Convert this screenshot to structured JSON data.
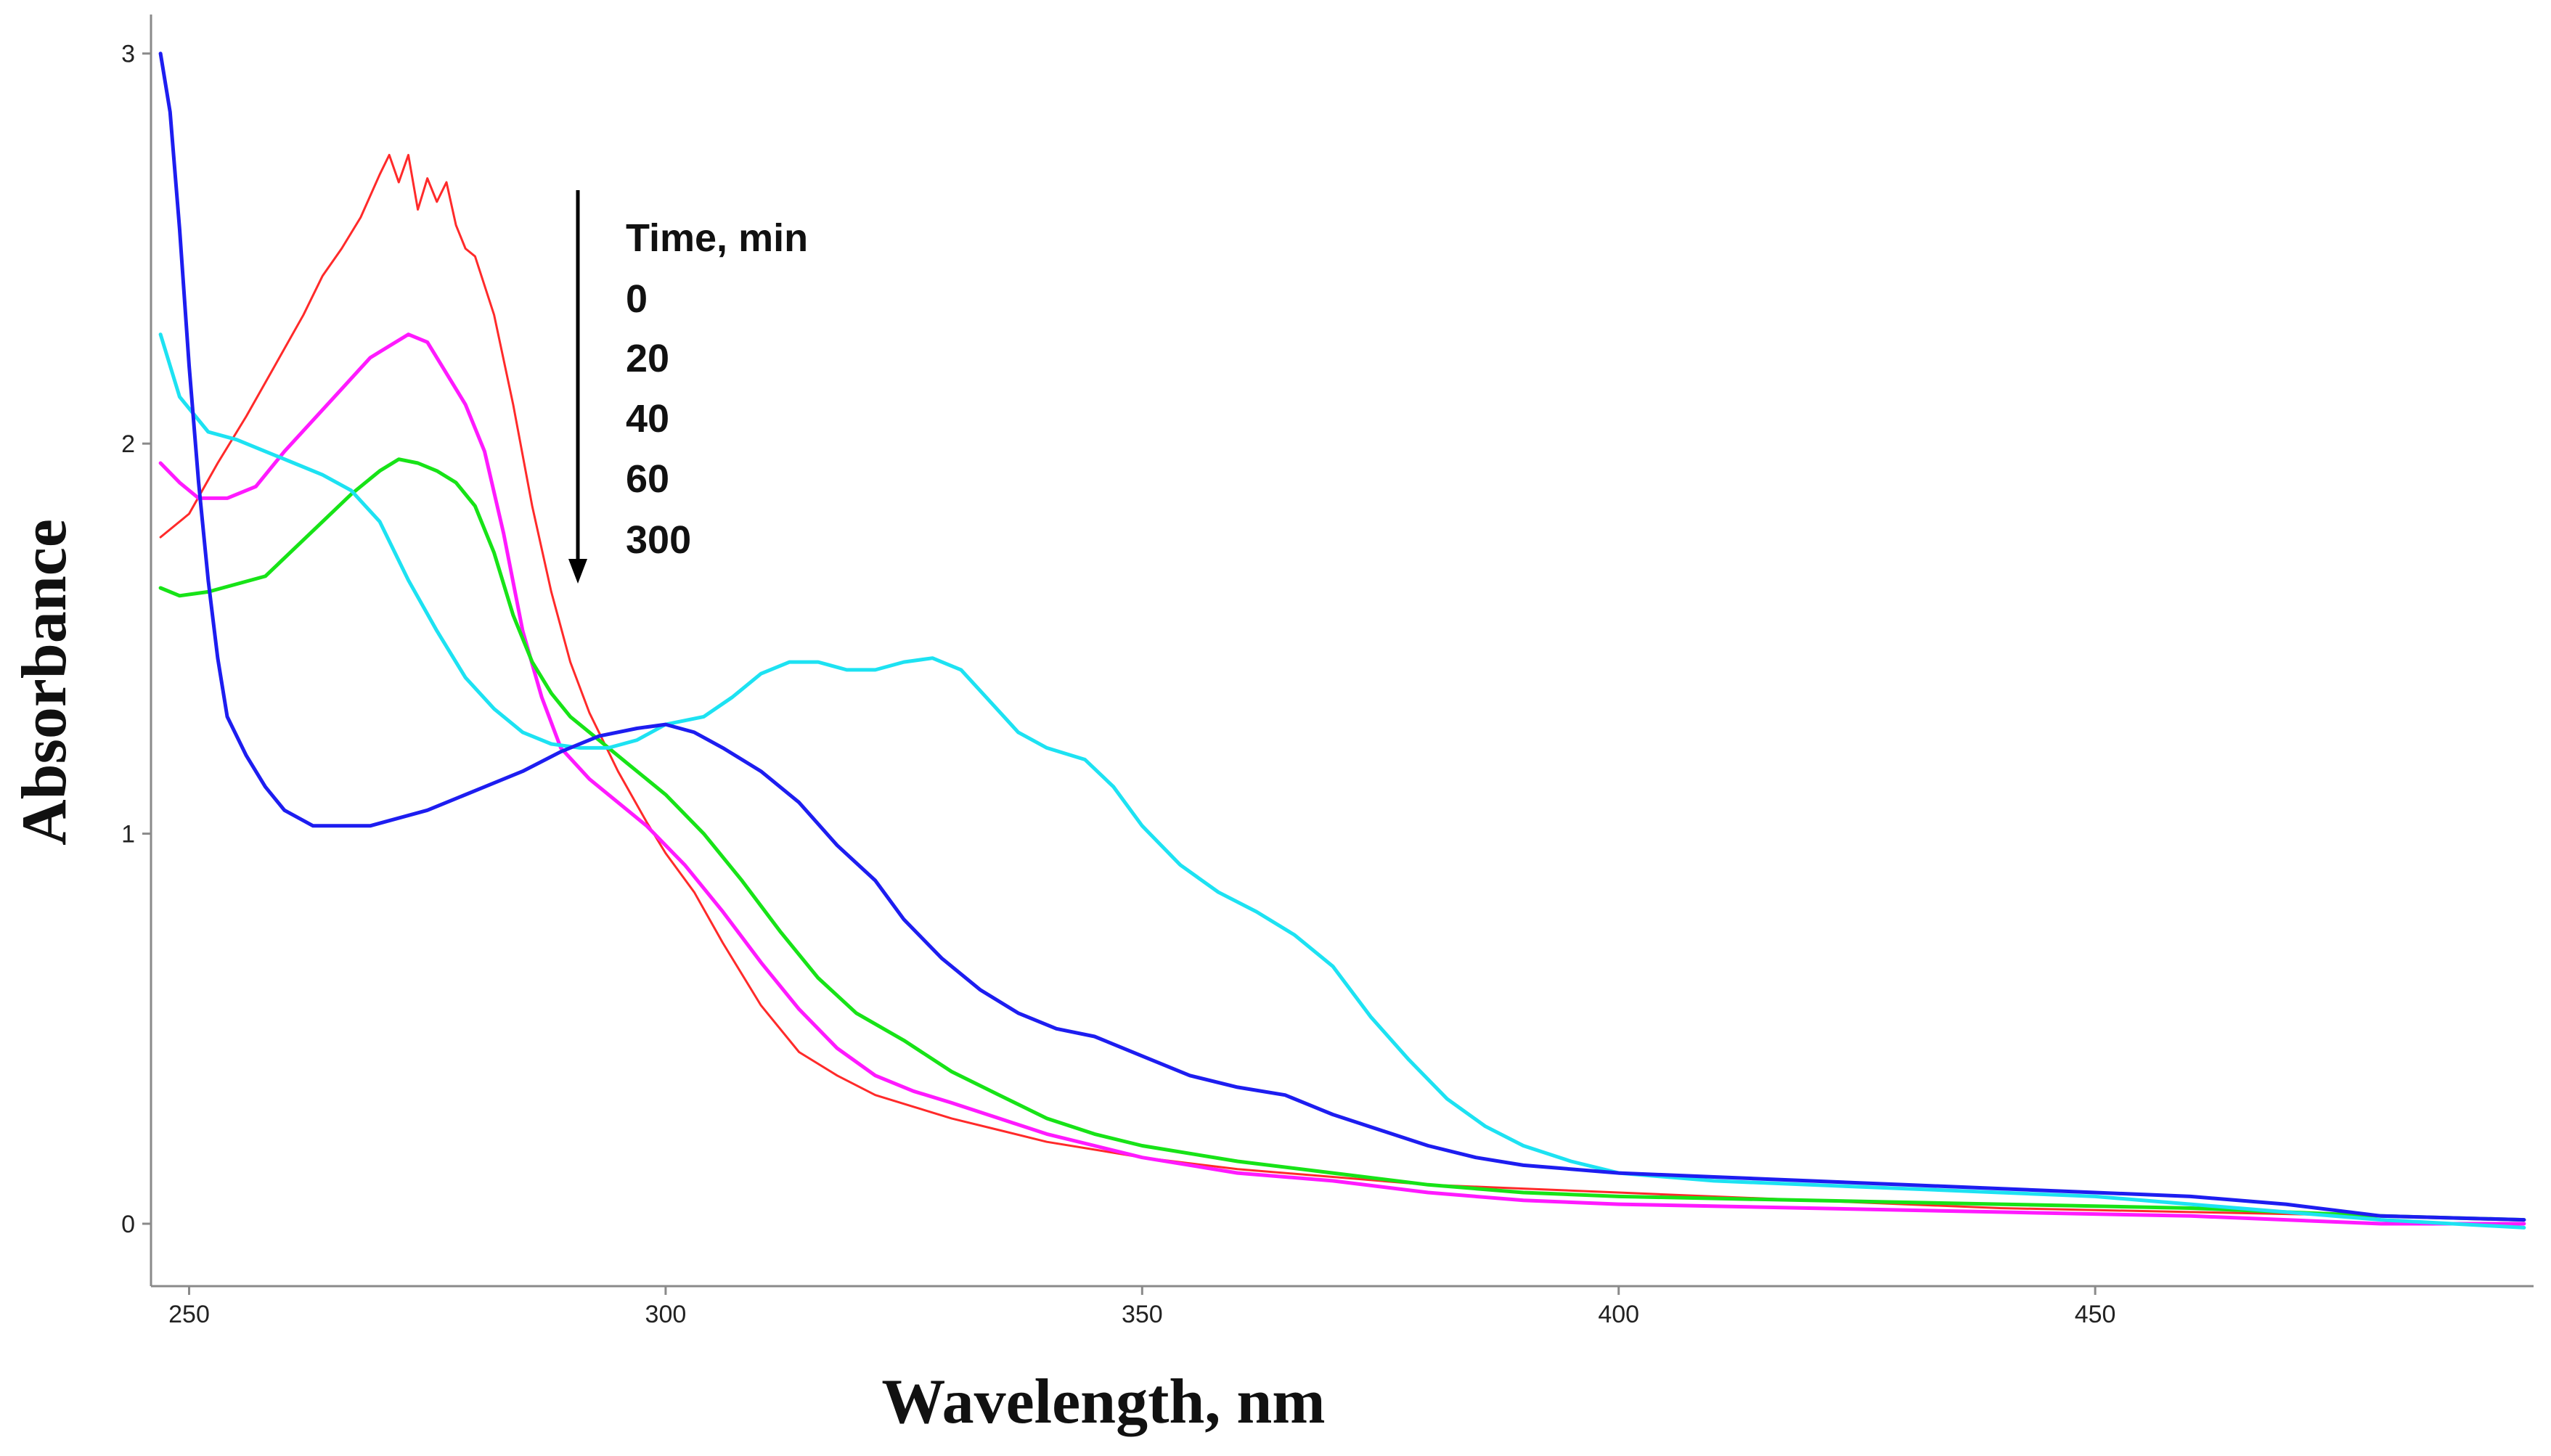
{
  "chart_data": {
    "type": "line",
    "title": "",
    "xlabel": "Wavelength, nm",
    "ylabel": "Absorbance",
    "xlim": [
      246,
      496
    ],
    "ylim": [
      -0.16,
      3.1
    ],
    "xticks": [
      250,
      300,
      350,
      400,
      450
    ],
    "yticks": [
      0,
      1,
      2,
      3
    ],
    "grid": false,
    "legend": {
      "title": "Time, min",
      "entries": [
        "0",
        "20",
        "40",
        "60",
        "300"
      ],
      "placement": "top-center",
      "arrow": "downward"
    },
    "series": [
      {
        "name": "0",
        "color": "#ff2a2a",
        "stroke": 3,
        "points": [
          [
            247,
            1.76
          ],
          [
            250,
            1.82
          ],
          [
            253,
            1.95
          ],
          [
            256,
            2.07
          ],
          [
            259,
            2.2
          ],
          [
            262,
            2.33
          ],
          [
            264,
            2.43
          ],
          [
            266,
            2.5
          ],
          [
            268,
            2.58
          ],
          [
            270,
            2.69
          ],
          [
            271,
            2.74
          ],
          [
            272,
            2.67
          ],
          [
            273,
            2.74
          ],
          [
            274,
            2.6
          ],
          [
            275,
            2.68
          ],
          [
            276,
            2.62
          ],
          [
            277,
            2.67
          ],
          [
            278,
            2.56
          ],
          [
            279,
            2.5
          ],
          [
            280,
            2.48
          ],
          [
            282,
            2.33
          ],
          [
            284,
            2.1
          ],
          [
            286,
            1.84
          ],
          [
            288,
            1.62
          ],
          [
            290,
            1.44
          ],
          [
            292,
            1.31
          ],
          [
            295,
            1.16
          ],
          [
            298,
            1.03
          ],
          [
            300,
            0.95
          ],
          [
            303,
            0.85
          ],
          [
            306,
            0.72
          ],
          [
            310,
            0.56
          ],
          [
            314,
            0.44
          ],
          [
            318,
            0.38
          ],
          [
            322,
            0.33
          ],
          [
            326,
            0.3
          ],
          [
            330,
            0.27
          ],
          [
            335,
            0.24
          ],
          [
            340,
            0.21
          ],
          [
            345,
            0.19
          ],
          [
            350,
            0.17
          ],
          [
            360,
            0.14
          ],
          [
            370,
            0.12
          ],
          [
            380,
            0.1
          ],
          [
            390,
            0.09
          ],
          [
            400,
            0.08
          ],
          [
            420,
            0.06
          ],
          [
            440,
            0.04
          ],
          [
            460,
            0.03
          ],
          [
            480,
            0.02
          ],
          [
            495,
            0.01
          ]
        ]
      },
      {
        "name": "20",
        "color": "#ff1aff",
        "stroke": 5,
        "points": [
          [
            247,
            1.95
          ],
          [
            249,
            1.9
          ],
          [
            251,
            1.86
          ],
          [
            254,
            1.86
          ],
          [
            257,
            1.89
          ],
          [
            260,
            1.98
          ],
          [
            263,
            2.06
          ],
          [
            266,
            2.14
          ],
          [
            269,
            2.22
          ],
          [
            271,
            2.25
          ],
          [
            273,
            2.28
          ],
          [
            275,
            2.26
          ],
          [
            277,
            2.18
          ],
          [
            279,
            2.1
          ],
          [
            281,
            1.98
          ],
          [
            283,
            1.77
          ],
          [
            285,
            1.52
          ],
          [
            287,
            1.35
          ],
          [
            289,
            1.22
          ],
          [
            292,
            1.14
          ],
          [
            295,
            1.08
          ],
          [
            298,
            1.02
          ],
          [
            302,
            0.92
          ],
          [
            306,
            0.8
          ],
          [
            310,
            0.67
          ],
          [
            314,
            0.55
          ],
          [
            318,
            0.45
          ],
          [
            322,
            0.38
          ],
          [
            326,
            0.34
          ],
          [
            330,
            0.31
          ],
          [
            335,
            0.27
          ],
          [
            340,
            0.23
          ],
          [
            345,
            0.2
          ],
          [
            350,
            0.17
          ],
          [
            360,
            0.13
          ],
          [
            370,
            0.11
          ],
          [
            380,
            0.08
          ],
          [
            390,
            0.06
          ],
          [
            400,
            0.05
          ],
          [
            420,
            0.04
          ],
          [
            440,
            0.03
          ],
          [
            460,
            0.02
          ],
          [
            480,
            0.0
          ],
          [
            495,
            0.0
          ]
        ]
      },
      {
        "name": "40",
        "color": "#17e317",
        "stroke": 5,
        "points": [
          [
            247,
            1.63
          ],
          [
            249,
            1.61
          ],
          [
            252,
            1.62
          ],
          [
            255,
            1.64
          ],
          [
            258,
            1.66
          ],
          [
            261,
            1.73
          ],
          [
            264,
            1.8
          ],
          [
            267,
            1.87
          ],
          [
            270,
            1.93
          ],
          [
            272,
            1.96
          ],
          [
            274,
            1.95
          ],
          [
            276,
            1.93
          ],
          [
            278,
            1.9
          ],
          [
            280,
            1.84
          ],
          [
            282,
            1.72
          ],
          [
            284,
            1.56
          ],
          [
            286,
            1.44
          ],
          [
            288,
            1.36
          ],
          [
            290,
            1.3
          ],
          [
            293,
            1.24
          ],
          [
            296,
            1.18
          ],
          [
            300,
            1.1
          ],
          [
            304,
            1.0
          ],
          [
            308,
            0.88
          ],
          [
            312,
            0.75
          ],
          [
            316,
            0.63
          ],
          [
            320,
            0.54
          ],
          [
            325,
            0.47
          ],
          [
            330,
            0.39
          ],
          [
            335,
            0.33
          ],
          [
            340,
            0.27
          ],
          [
            345,
            0.23
          ],
          [
            350,
            0.2
          ],
          [
            360,
            0.16
          ],
          [
            370,
            0.13
          ],
          [
            380,
            0.1
          ],
          [
            390,
            0.08
          ],
          [
            400,
            0.07
          ],
          [
            420,
            0.06
          ],
          [
            440,
            0.05
          ],
          [
            460,
            0.04
          ],
          [
            480,
            0.02
          ],
          [
            495,
            0.01
          ]
        ]
      },
      {
        "name": "60",
        "color": "#1de2f2",
        "stroke": 5,
        "points": [
          [
            247,
            2.28
          ],
          [
            249,
            2.12
          ],
          [
            252,
            2.03
          ],
          [
            255,
            2.01
          ],
          [
            258,
            1.98
          ],
          [
            261,
            1.95
          ],
          [
            264,
            1.92
          ],
          [
            267,
            1.88
          ],
          [
            270,
            1.8
          ],
          [
            273,
            1.65
          ],
          [
            276,
            1.52
          ],
          [
            279,
            1.4
          ],
          [
            282,
            1.32
          ],
          [
            285,
            1.26
          ],
          [
            288,
            1.23
          ],
          [
            291,
            1.22
          ],
          [
            294,
            1.22
          ],
          [
            297,
            1.24
          ],
          [
            300,
            1.28
          ],
          [
            304,
            1.3
          ],
          [
            307,
            1.35
          ],
          [
            310,
            1.41
          ],
          [
            313,
            1.44
          ],
          [
            316,
            1.44
          ],
          [
            319,
            1.42
          ],
          [
            322,
            1.42
          ],
          [
            325,
            1.44
          ],
          [
            328,
            1.45
          ],
          [
            331,
            1.42
          ],
          [
            334,
            1.34
          ],
          [
            337,
            1.26
          ],
          [
            340,
            1.22
          ],
          [
            344,
            1.19
          ],
          [
            347,
            1.12
          ],
          [
            350,
            1.02
          ],
          [
            354,
            0.92
          ],
          [
            358,
            0.85
          ],
          [
            362,
            0.8
          ],
          [
            366,
            0.74
          ],
          [
            370,
            0.66
          ],
          [
            374,
            0.53
          ],
          [
            378,
            0.42
          ],
          [
            382,
            0.32
          ],
          [
            386,
            0.25
          ],
          [
            390,
            0.2
          ],
          [
            395,
            0.16
          ],
          [
            400,
            0.13
          ],
          [
            410,
            0.11
          ],
          [
            420,
            0.1
          ],
          [
            430,
            0.09
          ],
          [
            440,
            0.08
          ],
          [
            450,
            0.07
          ],
          [
            460,
            0.05
          ],
          [
            470,
            0.03
          ],
          [
            480,
            0.01
          ],
          [
            495,
            -0.01
          ]
        ]
      },
      {
        "name": "300",
        "color": "#1d1df0",
        "stroke": 5,
        "points": [
          [
            247,
            3.0
          ],
          [
            248,
            2.85
          ],
          [
            249,
            2.55
          ],
          [
            250,
            2.2
          ],
          [
            251,
            1.9
          ],
          [
            252,
            1.65
          ],
          [
            253,
            1.45
          ],
          [
            254,
            1.3
          ],
          [
            256,
            1.2
          ],
          [
            258,
            1.12
          ],
          [
            260,
            1.06
          ],
          [
            263,
            1.02
          ],
          [
            266,
            1.02
          ],
          [
            269,
            1.02
          ],
          [
            272,
            1.04
          ],
          [
            275,
            1.06
          ],
          [
            278,
            1.09
          ],
          [
            281,
            1.12
          ],
          [
            285,
            1.16
          ],
          [
            289,
            1.21
          ],
          [
            293,
            1.25
          ],
          [
            297,
            1.27
          ],
          [
            300,
            1.28
          ],
          [
            303,
            1.26
          ],
          [
            306,
            1.22
          ],
          [
            310,
            1.16
          ],
          [
            314,
            1.08
          ],
          [
            318,
            0.97
          ],
          [
            322,
            0.88
          ],
          [
            325,
            0.78
          ],
          [
            329,
            0.68
          ],
          [
            333,
            0.6
          ],
          [
            337,
            0.54
          ],
          [
            341,
            0.5
          ],
          [
            345,
            0.48
          ],
          [
            350,
            0.43
          ],
          [
            355,
            0.38
          ],
          [
            360,
            0.35
          ],
          [
            365,
            0.33
          ],
          [
            370,
            0.28
          ],
          [
            375,
            0.24
          ],
          [
            380,
            0.2
          ],
          [
            385,
            0.17
          ],
          [
            390,
            0.15
          ],
          [
            400,
            0.13
          ],
          [
            410,
            0.12
          ],
          [
            420,
            0.11
          ],
          [
            430,
            0.1
          ],
          [
            440,
            0.09
          ],
          [
            450,
            0.08
          ],
          [
            460,
            0.07
          ],
          [
            470,
            0.05
          ],
          [
            480,
            0.02
          ],
          [
            495,
            0.01
          ]
        ]
      }
    ]
  }
}
